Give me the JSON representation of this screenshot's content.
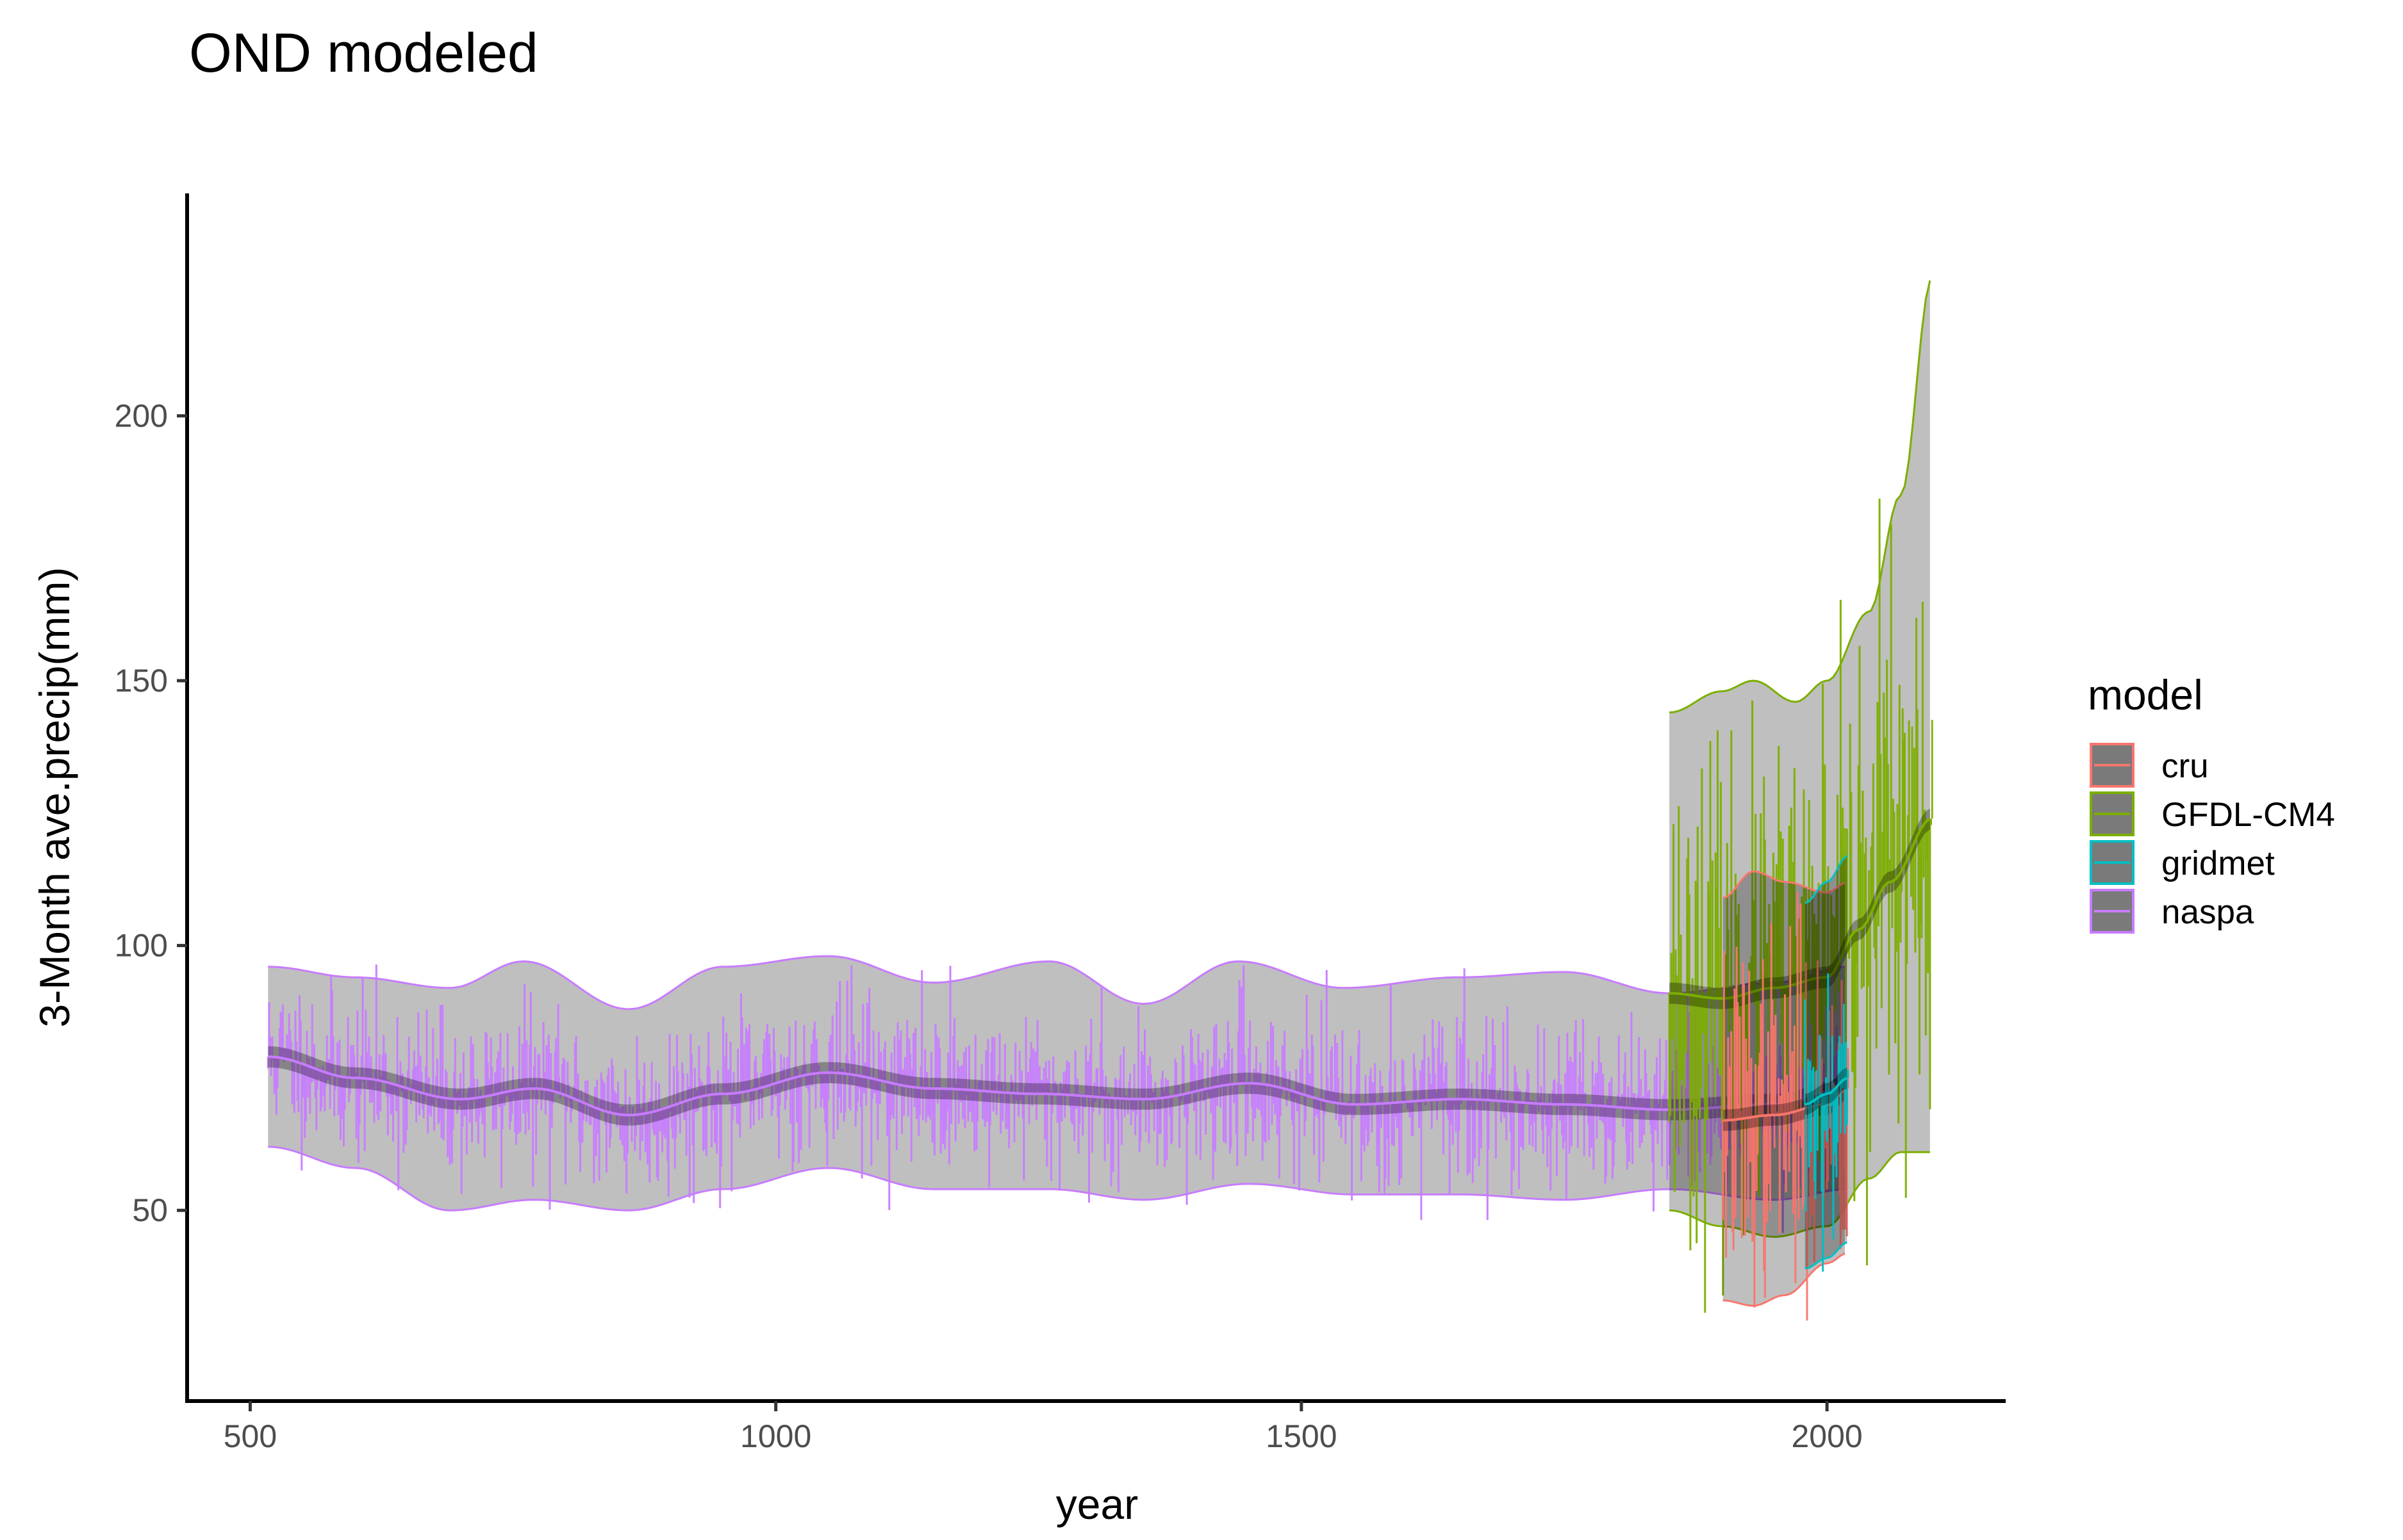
{
  "chart_data": {
    "type": "line",
    "title": "OND modeled",
    "xlabel": "year",
    "ylabel": "3-Month ave.precip(mm)",
    "xlim": [
      440,
      2170
    ],
    "ylim": [
      14,
      242
    ],
    "xticks": [
      500,
      1000,
      1500,
      2000
    ],
    "yticks": [
      50,
      100,
      150,
      200
    ],
    "grid": false,
    "legend": {
      "title": "model",
      "placement": "right",
      "entries": [
        "cru",
        "GFDL-CM4",
        "gridmet",
        "naspa"
      ]
    },
    "series": [
      {
        "name": "naspa",
        "color": "#C77CFF",
        "x_range": [
          517,
          2020
        ],
        "trend": {
          "x": [
            517,
            600,
            700,
            770,
            860,
            950,
            1050,
            1150,
            1250,
            1350,
            1450,
            1550,
            1650,
            1750,
            1850,
            1950,
            2020
          ],
          "y": [
            79,
            75,
            71,
            73,
            68,
            72,
            76,
            73,
            72,
            71,
            74,
            70,
            71,
            70,
            69,
            70,
            73
          ]
        },
        "band_upper": {
          "x": [
            517,
            600,
            690,
            760,
            860,
            950,
            1050,
            1150,
            1260,
            1350,
            1440,
            1540,
            1650,
            1750,
            1850,
            1950,
            2020
          ],
          "y": [
            96,
            94,
            92,
            97,
            88,
            96,
            98,
            93,
            97,
            89,
            97,
            92,
            94,
            95,
            91,
            93,
            96
          ]
        },
        "band_lower": {
          "x": [
            517,
            600,
            690,
            770,
            860,
            950,
            1050,
            1150,
            1260,
            1350,
            1450,
            1550,
            1650,
            1750,
            1850,
            1950,
            2020
          ],
          "y": [
            62,
            58,
            50,
            52,
            50,
            54,
            58,
            54,
            54,
            52,
            55,
            53,
            53,
            52,
            54,
            52,
            54
          ]
        },
        "noise_sd": 8
      },
      {
        "name": "GFDL-CM4",
        "color": "#7CAE00",
        "x_range": [
          1850,
          2100
        ],
        "trend": {
          "x": [
            1850,
            1900,
            1950,
            2000,
            2030,
            2060,
            2100
          ],
          "y": [
            91,
            90,
            92,
            94,
            103,
            112,
            124
          ]
        },
        "band_upper": {
          "x": [
            1850,
            1900,
            1930,
            1970,
            2000,
            2040,
            2070,
            2100
          ],
          "y": [
            144,
            148,
            150,
            146,
            150,
            163,
            185,
            226
          ]
        },
        "band_lower": {
          "x": [
            1850,
            1900,
            1950,
            2000,
            2040,
            2070,
            2100
          ],
          "y": [
            50,
            47,
            45,
            47,
            56,
            61,
            61
          ]
        },
        "noise_sd": 22
      },
      {
        "name": "cru",
        "color": "#F8766D",
        "x_range": [
          1901,
          2020
        ],
        "trend": {
          "x": [
            1901,
            1950,
            2000,
            2020
          ],
          "y": [
            67,
            68,
            70,
            73
          ]
        },
        "band_upper": {
          "x": [
            1901,
            1930,
            1960,
            2000,
            2020
          ],
          "y": [
            109,
            114,
            112,
            110,
            112
          ]
        },
        "band_lower": {
          "x": [
            1901,
            1930,
            1960,
            2000,
            2020
          ],
          "y": [
            33,
            32,
            34,
            40,
            42
          ]
        },
        "noise_sd": 17
      },
      {
        "name": "gridmet",
        "color": "#00BFC4",
        "x_range": [
          1979,
          2020
        ],
        "trend": {
          "x": [
            1979,
            2000,
            2020
          ],
          "y": [
            70,
            72,
            75
          ]
        },
        "band_upper": {
          "x": [
            1979,
            2000,
            2020
          ],
          "y": [
            108,
            112,
            117
          ]
        },
        "band_lower": {
          "x": [
            1979,
            2000,
            2020
          ],
          "y": [
            39,
            41,
            44
          ]
        },
        "noise_sd": 14
      }
    ]
  }
}
